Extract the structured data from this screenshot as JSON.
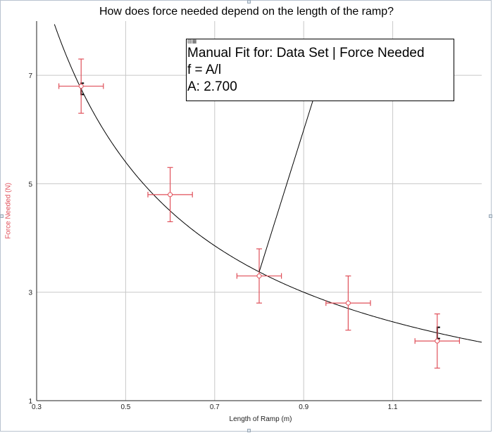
{
  "chart_data": {
    "type": "scatter",
    "title": "How does force needed depend on the length of the ramp?",
    "xlabel": "Length of Ramp (m)",
    "ylabel": "Force Needed (N)",
    "xlim": [
      0.3,
      1.3
    ],
    "ylim": [
      1,
      8
    ],
    "x_ticks": [
      0.3,
      0.5,
      0.7,
      0.9,
      1.1
    ],
    "y_ticks": [
      1,
      3,
      5,
      7
    ],
    "grid": true,
    "points": [
      {
        "x": 0.4,
        "y": 6.8,
        "x_err": 0.05,
        "y_err": 0.5
      },
      {
        "x": 0.6,
        "y": 4.8,
        "x_err": 0.05,
        "y_err": 0.5
      },
      {
        "x": 0.8,
        "y": 3.3,
        "x_err": 0.05,
        "y_err": 0.5
      },
      {
        "x": 1.0,
        "y": 2.8,
        "x_err": 0.05,
        "y_err": 0.5
      },
      {
        "x": 1.2,
        "y": 2.1,
        "x_err": 0.05,
        "y_err": 0.5
      }
    ],
    "fit": {
      "equation": "f = A/l",
      "A": 2.7
    },
    "colors": {
      "points": "#e0505a",
      "fit": "#000000",
      "grid": "#c8c8c8"
    }
  },
  "annotation": {
    "corner": "▤▦",
    "line1": "Manual Fit for: Data Set | Force Needed",
    "line2": "f = A/l",
    "line3": "A: 2.700"
  }
}
